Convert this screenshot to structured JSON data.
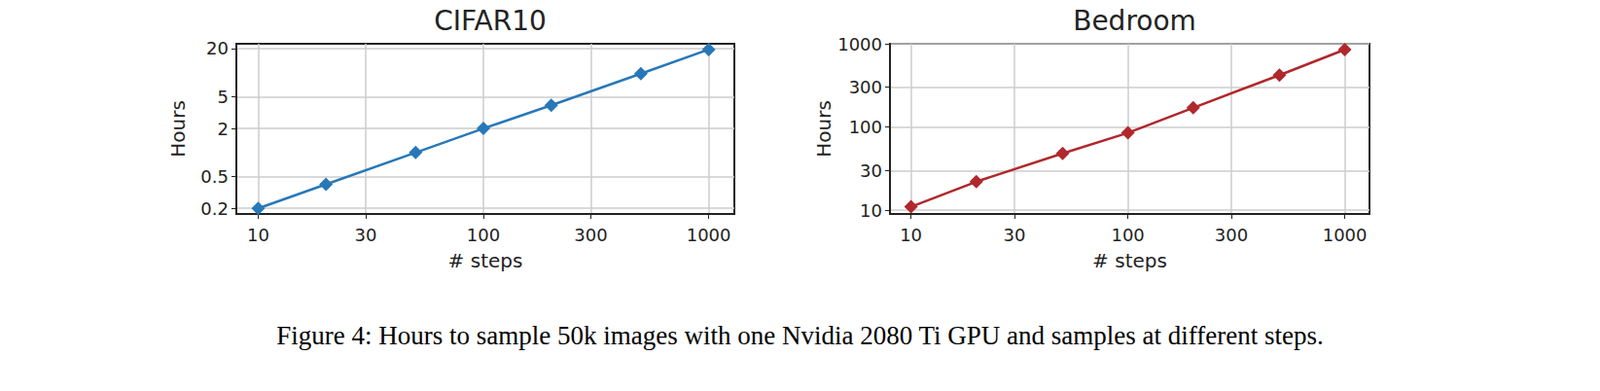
{
  "chart_data": [
    {
      "type": "line",
      "title": "CIFAR10",
      "xlabel": "# steps",
      "ylabel": "Hours",
      "log": true,
      "grid": true,
      "marker": "diamond",
      "color": "#2878b8",
      "x": [
        10,
        20,
        50,
        100,
        200,
        500,
        1000
      ],
      "values": [
        0.2,
        0.4,
        1,
        2,
        3.9,
        9.7,
        19.5
      ],
      "xlim": [
        8,
        1300
      ],
      "xticks": [
        10,
        30,
        100,
        300,
        1000
      ],
      "ylim": [
        0.17,
        23
      ],
      "yticks": [
        0.2,
        0.5,
        2,
        5,
        20
      ]
    },
    {
      "type": "line",
      "title": "Bedroom",
      "xlabel": "# steps",
      "ylabel": "Hours",
      "log": true,
      "grid": true,
      "marker": "diamond",
      "color": "#b0282c",
      "x": [
        10,
        20,
        50,
        100,
        200,
        500,
        1000
      ],
      "values": [
        11,
        22,
        48,
        85,
        170,
        420,
        850
      ],
      "xlim": [
        8,
        1300
      ],
      "xticks": [
        10,
        30,
        100,
        300,
        1000
      ],
      "ylim": [
        9,
        1000
      ],
      "yticks": [
        10,
        30,
        100,
        300,
        1000
      ]
    }
  ],
  "caption": "Figure 4: Hours to sample 50k images with one Nvidia 2080 Ti GPU and samples at different steps."
}
